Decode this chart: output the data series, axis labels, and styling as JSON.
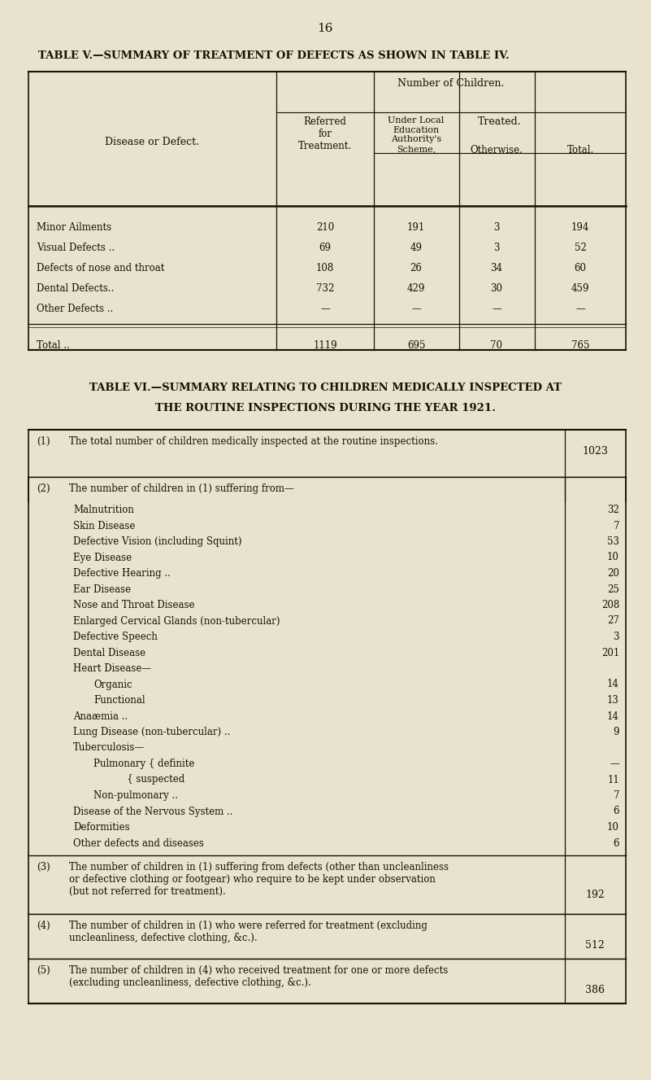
{
  "bg_color": "#e8e2ce",
  "text_color": "#1a1008",
  "page_number": "16",
  "table5_title": "TABLE V.—SUMMARY OF TREATMENT OF DEFECTS AS SHOWN IN TABLE IV.",
  "table5_rows": [
    [
      "Minor Ailments",
      "210",
      "191",
      "3",
      "194"
    ],
    [
      "Visual Defects ..",
      "69",
      "49",
      "3",
      "52"
    ],
    [
      "Defects of nose and throat",
      "108",
      "26",
      "34",
      "60"
    ],
    [
      "Dental Defects..",
      "732",
      "429",
      "30",
      "459"
    ],
    [
      "Other Defects ..",
      "—",
      "—",
      "—",
      "—"
    ]
  ],
  "table5_total": [
    "Total ..",
    "1119",
    "695",
    "70",
    "765"
  ],
  "table6_title_line1": "TABLE VI.—SUMMARY RELATING TO CHILDREN MEDICALLY INSPECTED AT",
  "table6_title_line2": "THE ROUTINE INSPECTIONS DURING THE YEAR 1921.",
  "sub_rows": [
    [
      "Malnutrition",
      "32",
      1
    ],
    [
      "Skin Disease",
      "7",
      1
    ],
    [
      "Defective Vision (including Squint)",
      "53",
      1
    ],
    [
      "Eye Disease",
      "10",
      1
    ],
    [
      "Defective Hearing ..",
      "20",
      1
    ],
    [
      "Ear Disease",
      "25",
      1
    ],
    [
      "Nose and Throat Disease",
      "208",
      1
    ],
    [
      "Enlarged Cervical Glands (non-tubercular)",
      "27",
      1
    ],
    [
      "Defective Speech",
      "3",
      1
    ],
    [
      "Dental Disease",
      "201",
      1
    ],
    [
      "Heart Disease—",
      "",
      1
    ],
    [
      "Organic",
      "14",
      2
    ],
    [
      "Functional",
      "13",
      2
    ],
    [
      "Anaæmia ..",
      "14",
      1
    ],
    [
      "Lung Disease (non-tubercular) ..",
      "9",
      1
    ],
    [
      "Tuberculosis—",
      "",
      1
    ],
    [
      "Pulmonary { definite",
      "—",
      2
    ],
    [
      "           { suspected",
      "11",
      2
    ],
    [
      "Non-pulmonary ..",
      "7",
      2
    ],
    [
      "Disease of the Nervous System ..",
      "6",
      1
    ],
    [
      "Deformities",
      "10",
      1
    ],
    [
      "Other defects and diseases",
      "6",
      1
    ]
  ],
  "row3_text": "The number of children in (1) suffering from defects (other than uncleanliness\nor defective clothing or footgear) who require to be kept under observation\n(but not referred for treatment).",
  "row3_val": "192",
  "row4_text": "The number of children in (1) who were referred for treatment (excluding\nuncleanliness, defective clothing, &c.).",
  "row4_val": "512",
  "row5_text": "The number of children in (4) who received treatment for one or more defects\n(excluding uncleanliness, defective clothing, &c.).",
  "row5_val": "386"
}
